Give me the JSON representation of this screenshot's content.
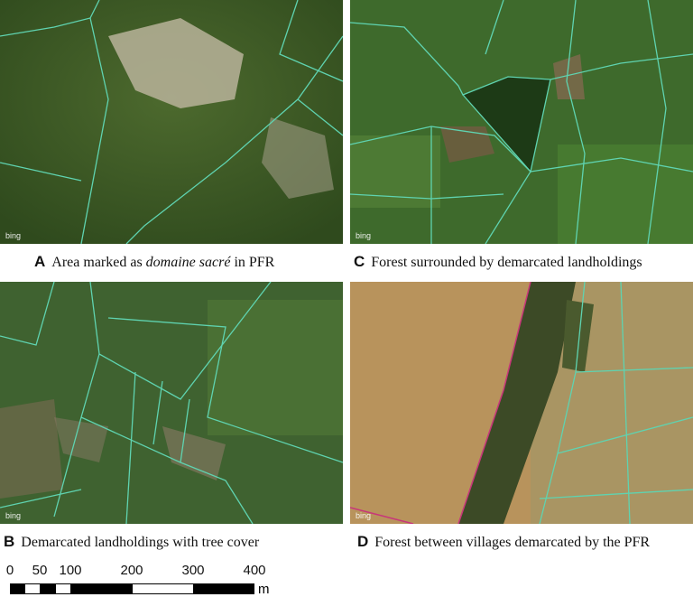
{
  "panels": [
    {
      "letter": "A",
      "caption_pre": "Area marked as ",
      "caption_em": "domaine sacré",
      "caption_post": " in PFR",
      "watermark": "bing"
    },
    {
      "letter": "C",
      "caption_pre": "Forest surrounded by demarcated landholdings",
      "caption_em": "",
      "caption_post": "",
      "watermark": "bing"
    },
    {
      "letter": "B",
      "caption_pre": "Demarcated landholdings with tree cover",
      "caption_em": "",
      "caption_post": "",
      "watermark": "bing"
    },
    {
      "letter": "D",
      "caption_pre": "Forest between villages demarcated by the PFR",
      "caption_em": "",
      "caption_post": "",
      "watermark": "bing"
    }
  ],
  "scale_bar": {
    "ticks": [
      "0",
      "50",
      "100",
      "200",
      "300",
      "400"
    ],
    "unit": "m"
  },
  "colors": {
    "parcel_line": "#5fd3b0",
    "village_boundary": "#c8367a"
  }
}
